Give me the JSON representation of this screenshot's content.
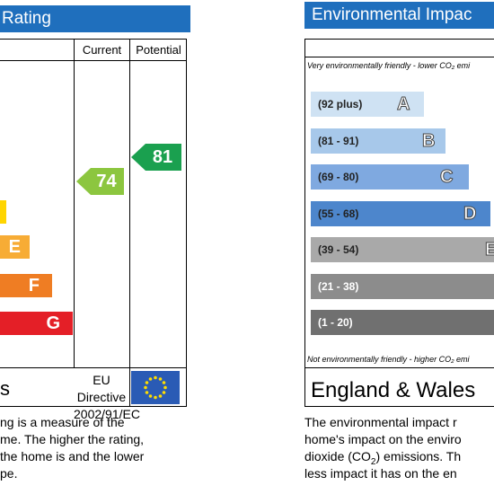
{
  "energy": {
    "title": "Rating",
    "col_current": "Current",
    "col_potential": "Potential",
    "bands": [
      {
        "letter": "",
        "color": "#ffd500"
      },
      {
        "letter": "E",
        "color": "#f7ac35"
      },
      {
        "letter": "F",
        "color": "#ef7d23"
      },
      {
        "letter": "G",
        "color": "#e41f27"
      }
    ],
    "current": {
      "value": "74",
      "color": "#8cc63f"
    },
    "potential": {
      "value": "81",
      "color": "#1aa04f"
    },
    "footer_left": "s",
    "directive_line1": "EU Directive",
    "directive_line2": "2002/91/EC",
    "paragraph": [
      "ng is a measure of the",
      "me. The higher the rating,",
      "the home is and the lower",
      "pe."
    ]
  },
  "environment": {
    "title": "Environmental Impac",
    "top_note": "Very environmentally friendly - lower CO₂ emi",
    "bottom_note": "Not environmentally friendly - higher CO₂ emi",
    "bands": [
      {
        "range": "(92 plus)",
        "letter": "A",
        "color": "#cfe2f3"
      },
      {
        "range": "(81 - 91)",
        "letter": "B",
        "color": "#a7c8ea"
      },
      {
        "range": "(69 - 80)",
        "letter": "C",
        "color": "#7fa9e0"
      },
      {
        "range": "(55 - 68)",
        "letter": "D",
        "color": "#4d86cc"
      },
      {
        "range": "(39 - 54)",
        "letter": "E",
        "color": "#a9a9a9"
      },
      {
        "range": "(21 - 38)",
        "letter": "",
        "color": "#8c8c8c"
      },
      {
        "range": "(1 - 20)",
        "letter": "",
        "color": "#707070"
      }
    ],
    "footer": "England & Wales",
    "paragraph": [
      "The environmental impact r",
      "home's impact on the enviro",
      "dioxide (CO",
      "less impact it has on the en"
    ],
    "paragraph_sub": "2",
    "paragraph_tail": ") emissions. Th"
  }
}
